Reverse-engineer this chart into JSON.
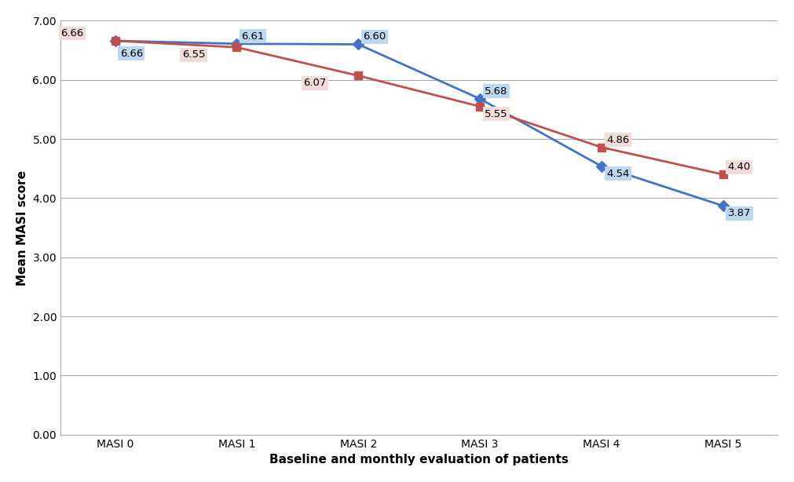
{
  "x_labels": [
    "MASI 0",
    "MASI 1",
    "MASI 2",
    "MASI 3",
    "MASI 4",
    "MASI 5"
  ],
  "blue_values": [
    6.66,
    6.61,
    6.6,
    5.68,
    4.54,
    3.87
  ],
  "red_values": [
    6.66,
    6.55,
    6.07,
    5.55,
    4.86,
    4.4
  ],
  "blue_color": "#4472C4",
  "red_color": "#C0504D",
  "blue_label_bg": "#BDD7EE",
  "red_label_bg": "#F2DCDB",
  "marker_size": 7,
  "line_width": 2.0,
  "ylabel": "Mean MASI score",
  "xlabel": "Baseline and monthly evaluation of patients",
  "ylim_min": 0.0,
  "ylim_max": 7.0,
  "yticks": [
    0.0,
    1.0,
    2.0,
    3.0,
    4.0,
    5.0,
    6.0,
    7.0
  ],
  "grid_color": "#AAAAAA",
  "background_color": "#FFFFFF",
  "plot_bg_color": "#FFFFFF",
  "axis_label_fontsize": 11,
  "tick_fontsize": 10,
  "annotation_fontsize": 9.5,
  "annotations": {
    "blue": [
      {
        "i": 0,
        "val": 6.66,
        "xoff": 0.04,
        "yoff": -0.13,
        "ha": "left",
        "va": "top"
      },
      {
        "i": 1,
        "val": 6.61,
        "xoff": 0.04,
        "yoff": 0.04,
        "ha": "left",
        "va": "bottom"
      },
      {
        "i": 2,
        "val": 6.6,
        "xoff": 0.04,
        "yoff": 0.04,
        "ha": "left",
        "va": "bottom"
      },
      {
        "i": 3,
        "val": 5.68,
        "xoff": 0.04,
        "yoff": 0.04,
        "ha": "left",
        "va": "bottom"
      },
      {
        "i": 4,
        "val": 4.54,
        "xoff": 0.04,
        "yoff": -0.04,
        "ha": "left",
        "va": "top"
      },
      {
        "i": 5,
        "val": 3.87,
        "xoff": 0.04,
        "yoff": -0.04,
        "ha": "left",
        "va": "top"
      }
    ],
    "red": [
      {
        "i": 0,
        "val": 6.66,
        "xoff": -0.45,
        "yoff": 0.04,
        "ha": "left",
        "va": "bottom"
      },
      {
        "i": 1,
        "val": 6.55,
        "xoff": -0.45,
        "yoff": -0.04,
        "ha": "left",
        "va": "top"
      },
      {
        "i": 2,
        "val": 6.07,
        "xoff": -0.45,
        "yoff": -0.04,
        "ha": "left",
        "va": "top"
      },
      {
        "i": 3,
        "val": 5.55,
        "xoff": 0.04,
        "yoff": -0.04,
        "ha": "left",
        "va": "top"
      },
      {
        "i": 4,
        "val": 4.86,
        "xoff": 0.04,
        "yoff": 0.04,
        "ha": "left",
        "va": "bottom"
      },
      {
        "i": 5,
        "val": 4.4,
        "xoff": 0.04,
        "yoff": 0.04,
        "ha": "left",
        "va": "bottom"
      }
    ]
  }
}
